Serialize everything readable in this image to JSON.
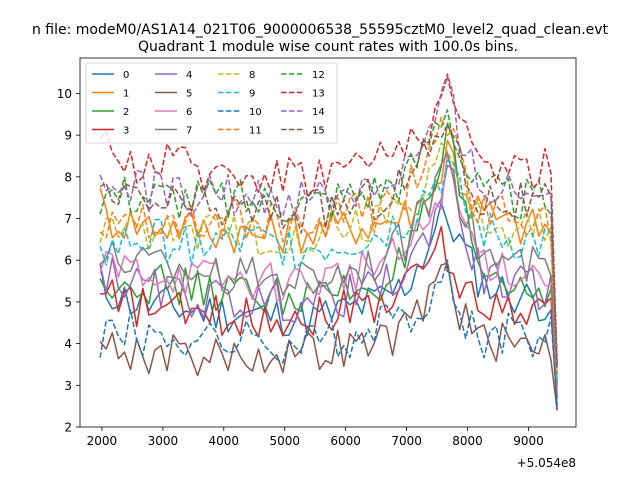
{
  "chart_data": {
    "type": "line",
    "suptitle": "n file: modeM0/AS1A14_021T06_9000006538_55595cztM0_level2_quad_clean.evt",
    "title": "Quadrant 1 module wise count rates with 100.0s bins.",
    "xlabel": "",
    "ylabel": "",
    "offset_text": "+5.054e8",
    "x_offset": 505400000,
    "xlim": [
      1640,
      9780
    ],
    "ylim": [
      2,
      10.85
    ],
    "xticks": [
      2000,
      3000,
      4000,
      5000,
      6000,
      7000,
      8000,
      9000
    ],
    "yticks": [
      2,
      3,
      4,
      5,
      6,
      7,
      8,
      9,
      10
    ],
    "grid": false,
    "legend_position": "top-left",
    "legend_columns": 4,
    "x_start": 1970,
    "x_step": 100,
    "anchor_x": [
      1970,
      2070,
      2500,
      3500,
      4500,
      5500,
      6500,
      7000,
      7300,
      7550,
      7700,
      7850,
      8200,
      8700,
      9200,
      9370,
      9420,
      9470
    ],
    "series": [
      {
        "name": "0",
        "style": "solid",
        "color": "#1f77b4",
        "levels": [
          5.5,
          5.3,
          5.0,
          4.8,
          4.7,
          4.6,
          5.0,
          5.4,
          6.2,
          7.0,
          7.0,
          6.5,
          5.5,
          5.2,
          5.0,
          5.0,
          4.6,
          2.5
        ]
      },
      {
        "name": "1",
        "style": "solid",
        "color": "#ff7f0e",
        "levels": [
          7.4,
          7.0,
          6.9,
          6.8,
          6.6,
          6.7,
          6.9,
          7.1,
          7.4,
          8.0,
          8.9,
          8.0,
          7.2,
          6.8,
          6.8,
          6.7,
          6.2,
          3.0
        ]
      },
      {
        "name": "2",
        "style": "solid",
        "color": "#2ca02c",
        "levels": [
          5.3,
          5.6,
          5.5,
          5.3,
          5.2,
          5.1,
          5.4,
          6.0,
          7.0,
          8.0,
          9.1,
          7.5,
          5.8,
          5.4,
          5.3,
          5.2,
          5.0,
          2.7
        ]
      },
      {
        "name": "3",
        "style": "solid",
        "color": "#d62728",
        "levels": [
          5.0,
          5.1,
          4.9,
          4.7,
          4.6,
          4.7,
          5.0,
          5.3,
          6.0,
          6.4,
          6.0,
          5.5,
          5.0,
          4.9,
          4.8,
          4.8,
          4.6,
          2.4
        ]
      },
      {
        "name": "4",
        "style": "solid",
        "color": "#9467bd",
        "levels": [
          5.8,
          5.7,
          5.4,
          5.1,
          5.0,
          5.0,
          5.3,
          5.7,
          6.5,
          7.5,
          8.6,
          7.0,
          5.7,
          5.4,
          5.3,
          5.2,
          5.0,
          2.8
        ]
      },
      {
        "name": "5",
        "style": "solid",
        "color": "#8c564b",
        "levels": [
          4.0,
          3.9,
          3.8,
          3.7,
          3.7,
          3.8,
          4.0,
          4.3,
          5.0,
          5.7,
          5.8,
          4.8,
          4.1,
          4.0,
          4.0,
          4.0,
          3.8,
          2.4
        ]
      },
      {
        "name": "6",
        "style": "solid",
        "color": "#e377c2",
        "levels": [
          5.7,
          5.8,
          5.8,
          5.6,
          5.5,
          5.5,
          5.9,
          6.2,
          6.8,
          7.6,
          8.3,
          7.2,
          6.1,
          5.8,
          5.7,
          5.6,
          5.4,
          2.9
        ]
      },
      {
        "name": "7",
        "style": "solid",
        "color": "#7f7f7f",
        "levels": [
          6.0,
          6.2,
          6.0,
          5.8,
          5.6,
          5.6,
          6.0,
          6.5,
          7.2,
          8.3,
          9.1,
          7.6,
          6.2,
          5.9,
          5.8,
          5.7,
          5.5,
          3.0
        ]
      },
      {
        "name": "8",
        "style": "dashed",
        "color": "#bcbd22",
        "levels": [
          6.6,
          6.7,
          6.8,
          6.7,
          6.6,
          6.7,
          7.0,
          7.3,
          7.8,
          8.5,
          8.8,
          7.8,
          6.9,
          6.8,
          6.7,
          6.7,
          6.4,
          3.2
        ]
      },
      {
        "name": "9",
        "style": "dashed",
        "color": "#17becf",
        "levels": [
          6.6,
          6.2,
          6.5,
          6.4,
          6.4,
          6.3,
          6.6,
          7.0,
          7.6,
          8.0,
          8.3,
          7.5,
          6.7,
          6.5,
          6.4,
          6.4,
          6.1,
          3.1
        ]
      },
      {
        "name": "10",
        "style": "dashed",
        "color": "#1f77b4",
        "levels": [
          4.0,
          4.4,
          4.3,
          4.1,
          4.0,
          4.0,
          4.3,
          4.6,
          5.2,
          5.5,
          5.6,
          4.8,
          4.2,
          4.2,
          4.2,
          4.2,
          4.0,
          2.5
        ]
      },
      {
        "name": "11",
        "style": "dashed",
        "color": "#ff7f0e",
        "levels": [
          7.1,
          7.0,
          7.1,
          7.0,
          6.9,
          6.9,
          7.2,
          7.6,
          8.3,
          9.0,
          9.5,
          8.3,
          7.2,
          7.0,
          6.9,
          6.9,
          6.6,
          3.3
        ]
      },
      {
        "name": "12",
        "style": "dashed",
        "color": "#2ca02c",
        "levels": [
          7.6,
          7.6,
          7.6,
          7.5,
          7.4,
          7.4,
          7.7,
          8.0,
          8.7,
          9.5,
          9.8,
          8.6,
          7.6,
          7.5,
          7.4,
          7.4,
          7.1,
          3.5
        ]
      },
      {
        "name": "13",
        "style": "dashed",
        "color": "#d62728",
        "levels": [
          8.4,
          8.6,
          8.4,
          8.2,
          8.1,
          8.1,
          8.4,
          8.8,
          9.2,
          9.8,
          10.4,
          9.0,
          8.4,
          8.2,
          8.2,
          8.2,
          7.8,
          3.6
        ]
      },
      {
        "name": "14",
        "style": "dashed",
        "color": "#9467bd",
        "levels": [
          7.6,
          7.8,
          7.7,
          7.6,
          7.5,
          7.5,
          7.8,
          8.2,
          8.8,
          9.5,
          10.2,
          8.7,
          7.8,
          7.7,
          7.6,
          7.6,
          7.2,
          3.5
        ]
      },
      {
        "name": "15",
        "style": "dashed",
        "color": "#8c564b",
        "levels": [
          7.4,
          7.5,
          7.4,
          7.3,
          7.2,
          7.2,
          7.5,
          7.9,
          8.5,
          9.1,
          9.8,
          8.4,
          7.5,
          7.4,
          7.3,
          7.3,
          7.0,
          3.4
        ]
      }
    ]
  }
}
